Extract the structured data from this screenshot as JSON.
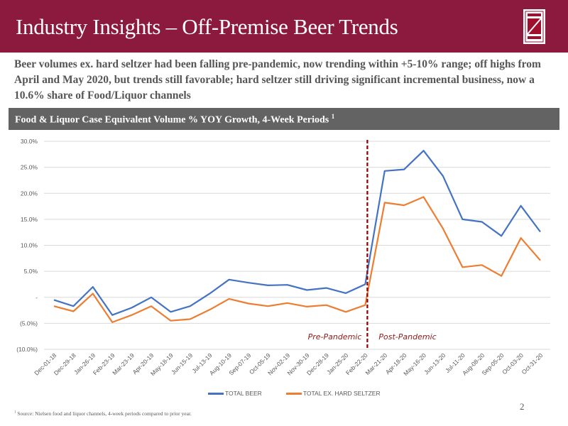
{
  "header": {
    "title": "Industry Insights – Off-Premise Beer Trends",
    "logo_icon": "z-logo-icon",
    "brand_color": "#8c1a3e"
  },
  "lead_text": "Beer volumes ex. hard seltzer had been falling pre-pandemic, now trending within +5-10% range; off highs from April and May 2020, but trends still favorable; hard seltzer still driving significant incremental business, now a 10.6% share of  Food/Liquor channels",
  "band": {
    "title": "Food & Liquor Case Equivalent Volume % YOY Growth, 4-Week Periods",
    "superscript": "1"
  },
  "chart_data": {
    "type": "line",
    "title": "Food & Liquor Case Equivalent Volume % YOY Growth, 4-Week Periods",
    "xlabel": "",
    "ylabel": "",
    "ylim": [
      -10,
      30
    ],
    "y_ticks": [
      30,
      25,
      20,
      15,
      10,
      5,
      0,
      -5,
      -10
    ],
    "y_tick_labels": [
      "30.0%",
      "25.0%",
      "20.0%",
      "15.0%",
      "10.0%",
      "5.0%",
      "-",
      "(5.0%)",
      "(10.0%)"
    ],
    "grid": true,
    "legend_position": "bottom",
    "categories": [
      "Dec-01-18",
      "Dec-29-18",
      "Jan-26-19",
      "Feb-23-19",
      "Mar-23-19",
      "Apr-20-19",
      "May-18-19",
      "Jun-15-19",
      "Jul-13-19",
      "Aug-10-19",
      "Sep-07-19",
      "Oct-05-19",
      "Nov-02-19",
      "Nov-30-19",
      "Dec-28-19",
      "Jan-25-20",
      "Feb-22-20",
      "Mar-21-20",
      "Apr-18-20",
      "May-16-20",
      "Jun-13-20",
      "Jul-11-20",
      "Aug-08-20",
      "Sep-05-20",
      "Oct-03-20",
      "Oct-31-20"
    ],
    "series": [
      {
        "name": "TOTAL BEER",
        "color": "#4472c4",
        "values": [
          -0.5,
          -1.7,
          2.0,
          -3.4,
          -2.0,
          0.0,
          -2.8,
          -1.7,
          0.7,
          3.4,
          2.8,
          2.3,
          2.4,
          1.4,
          1.8,
          0.8,
          2.5,
          24.3,
          24.6,
          28.2,
          23.3,
          15.0,
          14.5,
          11.8,
          17.6,
          12.6
        ]
      },
      {
        "name": "TOTAL EX. HARD SELTZER",
        "color": "#ed7d31",
        "values": [
          -1.7,
          -2.7,
          0.7,
          -4.8,
          -3.4,
          -1.7,
          -4.5,
          -4.2,
          -2.4,
          -0.3,
          -1.2,
          -1.7,
          -1.1,
          -1.8,
          -1.5,
          -2.8,
          -1.5,
          18.2,
          17.7,
          19.3,
          13.2,
          5.8,
          6.2,
          4.1,
          11.4,
          7.1
        ]
      }
    ],
    "annotations": [
      {
        "type": "vertical-dashed-line",
        "between": [
          "Feb-22-20",
          "Mar-21-20"
        ],
        "color": "#8b0000"
      },
      {
        "text": "Pre-Pandemic",
        "side": "left"
      },
      {
        "text": "Post-Pandemic",
        "side": "right"
      }
    ]
  },
  "legend": [
    {
      "label": "TOTAL BEER",
      "color": "#4472c4"
    },
    {
      "label": "TOTAL EX. HARD SELTZER",
      "color": "#ed7d31"
    }
  ],
  "footnote": {
    "marker": "1",
    "text": "Source: Nielsen food and liquor channels, 4-week periods compared to prior year."
  },
  "page_number": "2"
}
